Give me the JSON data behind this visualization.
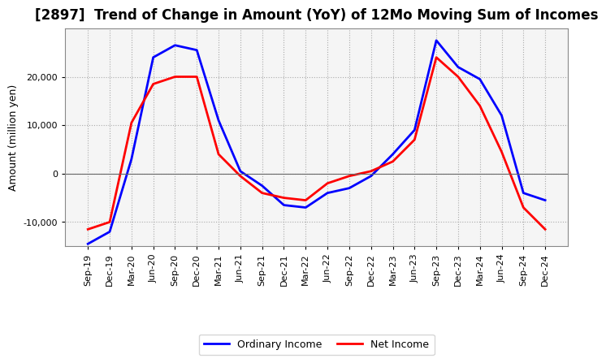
{
  "title": "[2897]  Trend of Change in Amount (YoY) of 12Mo Moving Sum of Incomes",
  "ylabel": "Amount (million yen)",
  "x_labels": [
    "Sep-19",
    "Dec-19",
    "Mar-20",
    "Jun-20",
    "Sep-20",
    "Dec-20",
    "Mar-21",
    "Jun-21",
    "Sep-21",
    "Dec-21",
    "Mar-22",
    "Jun-22",
    "Sep-22",
    "Dec-22",
    "Mar-23",
    "Jun-23",
    "Sep-23",
    "Dec-23",
    "Mar-24",
    "Jun-24",
    "Sep-24",
    "Dec-24"
  ],
  "ordinary_income": [
    -14500,
    -12000,
    3000,
    24000,
    26500,
    25500,
    11000,
    500,
    -2500,
    -6500,
    -7000,
    -4000,
    -3000,
    -500,
    4000,
    9000,
    27500,
    22000,
    19500,
    12000,
    -4000,
    -5500
  ],
  "net_income": [
    -11500,
    -10000,
    10500,
    18500,
    20000,
    20000,
    4000,
    -500,
    -4000,
    -5000,
    -5500,
    -2000,
    -500,
    500,
    2500,
    7000,
    24000,
    20000,
    14000,
    4500,
    -7000,
    -11500
  ],
  "ordinary_color": "#0000FF",
  "net_color": "#FF0000",
  "ylim_low": -15000,
  "ylim_high": 30000,
  "y_ticks": [
    -10000,
    0,
    10000,
    20000
  ],
  "background_color": "#FFFFFF",
  "plot_bg_color": "#F5F5F5",
  "grid_color": "#AAAAAA",
  "spine_color": "#888888",
  "legend_labels": [
    "Ordinary Income",
    "Net Income"
  ],
  "title_fontsize": 12,
  "axis_label_fontsize": 9,
  "tick_fontsize": 8,
  "legend_fontsize": 9,
  "line_width": 2.0
}
